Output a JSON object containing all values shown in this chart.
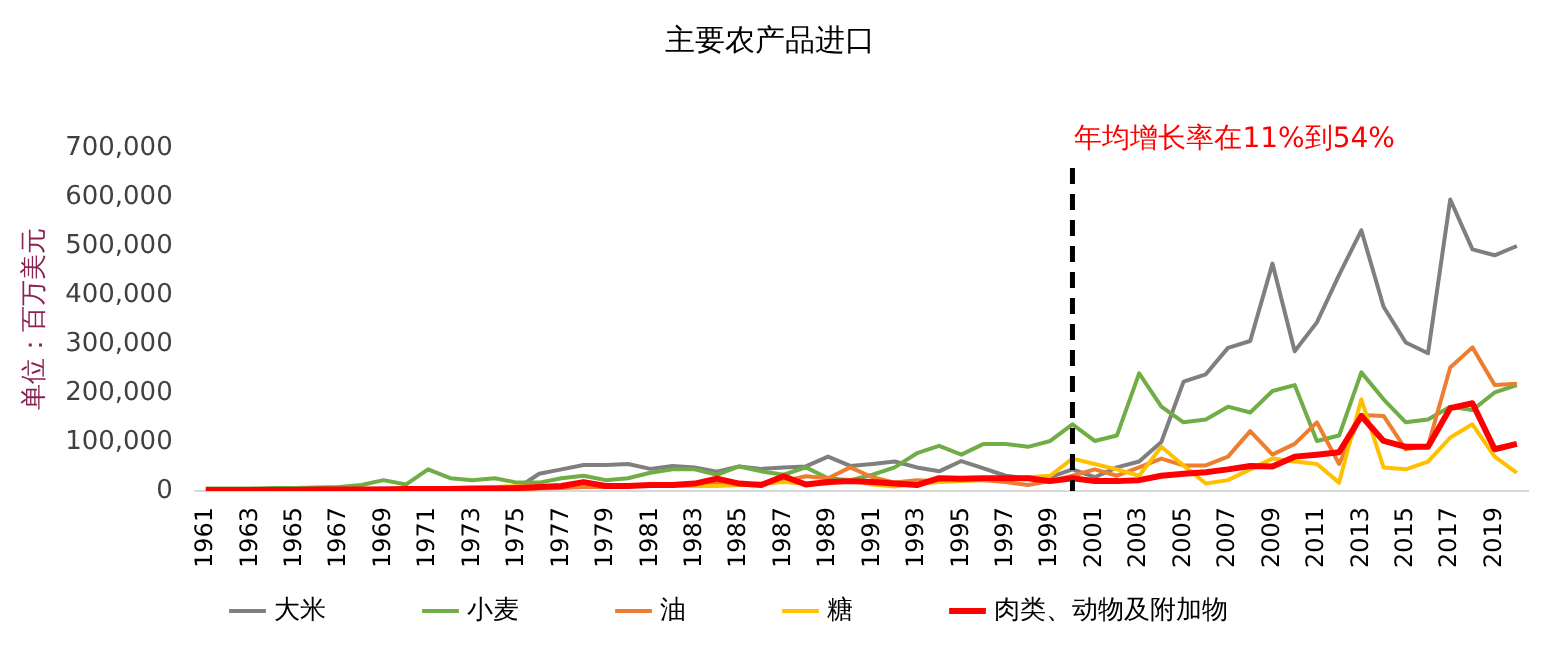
{
  "chart_data": {
    "type": "line",
    "title": "主要农产品进口",
    "ylabel": "单位：百万美元",
    "annotations": [
      "年均增长率在11%到54%"
    ],
    "x": [
      1961,
      1962,
      1963,
      1964,
      1965,
      1966,
      1967,
      1968,
      1969,
      1970,
      1971,
      1972,
      1973,
      1974,
      1975,
      1976,
      1977,
      1978,
      1979,
      1980,
      1981,
      1982,
      1983,
      1984,
      1985,
      1986,
      1987,
      1988,
      1989,
      1990,
      1991,
      1992,
      1993,
      1994,
      1995,
      1996,
      1997,
      1998,
      1999,
      2000,
      2001,
      2002,
      2003,
      2004,
      2005,
      2006,
      2007,
      2008,
      2009,
      2010,
      2011,
      2012,
      2013,
      2014,
      2015,
      2016,
      2017,
      2018,
      2019,
      2020
    ],
    "xlim": [
      1960.5,
      2020.5
    ],
    "xticks": [
      1961,
      1963,
      1965,
      1967,
      1969,
      1971,
      1973,
      1975,
      1977,
      1979,
      1981,
      1983,
      1985,
      1987,
      1989,
      1991,
      1993,
      1995,
      1997,
      1999,
      2001,
      2003,
      2005,
      2007,
      2009,
      2011,
      2013,
      2015,
      2017,
      2019
    ],
    "ylim": [
      0,
      700000
    ],
    "yticks": [
      {
        "value": 0,
        "label": "0"
      },
      {
        "value": 100000,
        "label": "100,000"
      },
      {
        "value": 200000,
        "label": "200,000"
      },
      {
        "value": 300000,
        "label": "300,000"
      },
      {
        "value": 400000,
        "label": "400,000"
      },
      {
        "value": 500000,
        "label": "500,000"
      },
      {
        "value": 600000,
        "label": "600,000"
      },
      {
        "value": 700000,
        "label": "700,000"
      }
    ],
    "grid": false,
    "legend": "bottom",
    "marker": "none",
    "line_style": "solid",
    "ref_lines": [
      {
        "axis": "x",
        "value": 2000,
        "color": "#000000",
        "line_style": "dashed"
      }
    ],
    "series": [
      {
        "name": "大米",
        "color": "#7f7f7f",
        "values": [
          null,
          null,
          null,
          3000,
          4000,
          4000,
          4000,
          4000,
          5000,
          5000,
          5000,
          5000,
          5000,
          5000,
          5000,
          35000,
          44000,
          53000,
          53000,
          55000,
          45000,
          51000,
          48000,
          39000,
          50000,
          45000,
          48000,
          50000,
          70000,
          51000,
          55000,
          60000,
          48000,
          40000,
          61000,
          46000,
          31000,
          25000,
          28000,
          44000,
          28000,
          48000,
          60000,
          100000,
          223000,
          238000,
          292000,
          306000,
          464000,
          285000,
          344000,
          441000,
          532000,
          376000,
          303000,
          281000,
          595000,
          493000,
          481000,
          500000
        ]
      },
      {
        "name": "小麦",
        "color": "#70ad47",
        "values": [
          5000,
          5000,
          5000,
          6000,
          6000,
          7000,
          8000,
          12000,
          22000,
          13000,
          44000,
          26000,
          22000,
          26000,
          17000,
          17000,
          26000,
          31000,
          22000,
          26000,
          37000,
          44000,
          44000,
          33000,
          50000,
          40000,
          33000,
          48000,
          26000,
          22000,
          33000,
          48000,
          77000,
          92000,
          74000,
          96000,
          96000,
          90000,
          102000,
          136000,
          102000,
          113000,
          240000,
          172000,
          140000,
          146000,
          172000,
          160000,
          204000,
          216000,
          102000,
          113000,
          242000,
          187000,
          140000,
          146000,
          172000,
          165000,
          201000,
          216000
        ]
      },
      {
        "name": "油",
        "color": "#ed7d31",
        "values": [
          2000,
          2000,
          2000,
          2000,
          2000,
          2000,
          2000,
          2000,
          2000,
          2000,
          2000,
          2000,
          2000,
          2000,
          2000,
          5000,
          6000,
          8000,
          8000,
          10000,
          10000,
          12000,
          12000,
          15000,
          12000,
          15000,
          20000,
          30000,
          26000,
          48000,
          28000,
          17000,
          22000,
          20000,
          25000,
          22000,
          18000,
          12000,
          20000,
          31000,
          44000,
          31000,
          48000,
          66000,
          52000,
          52000,
          70000,
          122000,
          74000,
          96000,
          140000,
          55000,
          155000,
          153000,
          85000,
          92000,
          252000,
          293000,
          216000,
          219000
        ]
      },
      {
        "name": "糖",
        "color": "#ffc000",
        "values": [
          null,
          null,
          null,
          null,
          null,
          null,
          null,
          null,
          null,
          null,
          null,
          5000,
          6000,
          8000,
          10000,
          8000,
          10000,
          15000,
          10000,
          12000,
          12000,
          10000,
          10000,
          10000,
          12000,
          15000,
          18000,
          15000,
          15000,
          22000,
          13000,
          9000,
          15000,
          18000,
          20000,
          22000,
          25000,
          28000,
          31000,
          66000,
          55000,
          44000,
          31000,
          90000,
          52000,
          15000,
          22000,
          44000,
          66000,
          60000,
          55000,
          17000,
          187000,
          48000,
          44000,
          60000,
          109000,
          136000,
          70000,
          37000
        ]
      },
      {
        "name": "肉类、动物及附加物",
        "color": "#ff0000",
        "values": [
          2000,
          2000,
          2000,
          2000,
          2000,
          3000,
          3000,
          3000,
          3000,
          4000,
          4000,
          4000,
          5000,
          5000,
          6000,
          8000,
          10000,
          18000,
          10000,
          10000,
          12000,
          12000,
          15000,
          25000,
          15000,
          12000,
          30000,
          13000,
          18000,
          20000,
          18000,
          15000,
          12000,
          26000,
          25000,
          26000,
          26000,
          26000,
          20000,
          26000,
          20000,
          20000,
          22000,
          31000,
          35000,
          38000,
          44000,
          51000,
          50000,
          70000,
          74000,
          79000,
          153000,
          102000,
          90000,
          90000,
          169000,
          179000,
          85000,
          96000
        ]
      }
    ]
  }
}
